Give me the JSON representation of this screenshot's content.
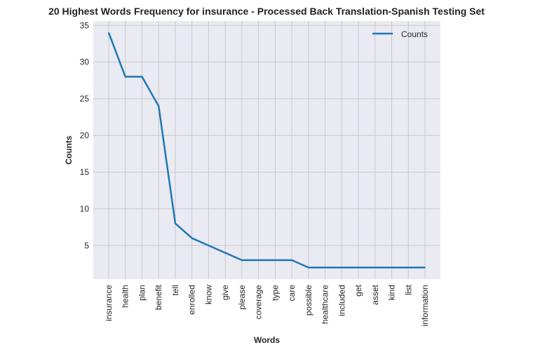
{
  "chart_data": {
    "type": "line",
    "title": "20 Highest Words Frequency for insurance - Processed Back Translation-Spanish Testing Set",
    "xlabel": "Words",
    "ylabel": "Counts",
    "categories": [
      "insurance",
      "health",
      "plan",
      "benefit",
      "tell",
      "enrolled",
      "know",
      "give",
      "please",
      "coverage",
      "type",
      "care",
      "possible",
      "healthcare",
      "included",
      "get",
      "asset",
      "kind",
      "list",
      "information"
    ],
    "series": [
      {
        "name": "Counts",
        "values": [
          34,
          28,
          28,
          24,
          8,
          6,
          5,
          4,
          3,
          3,
          3,
          3,
          2,
          2,
          2,
          2,
          2,
          2,
          2,
          2
        ]
      }
    ],
    "yticks": [
      5,
      10,
      15,
      20,
      25,
      30,
      35
    ],
    "ylim": [
      0.4,
      35.6
    ],
    "grid": true,
    "legend": "top-right",
    "colors": {
      "line": "#1f77b4",
      "plot_bg": "#eaeaf2",
      "grid": "#c8c8cc"
    }
  }
}
